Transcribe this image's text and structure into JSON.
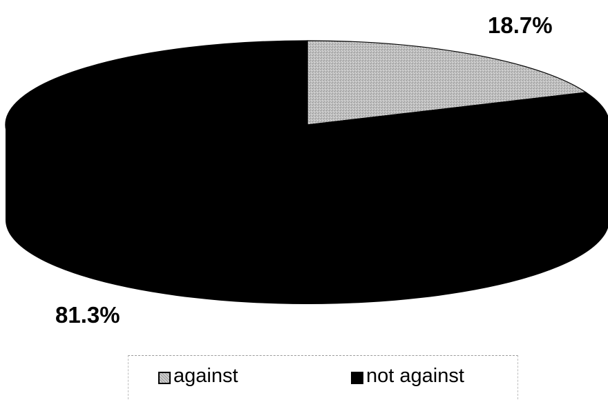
{
  "chart_data": {
    "type": "pie",
    "style": "3d",
    "slices": [
      {
        "label": "against",
        "value": 18.7,
        "display": "18.7%",
        "color": "#b3b3b3"
      },
      {
        "label": "not against",
        "value": 81.3,
        "display": "81.3%",
        "color": "#000000"
      }
    ],
    "legend_position": "bottom"
  }
}
